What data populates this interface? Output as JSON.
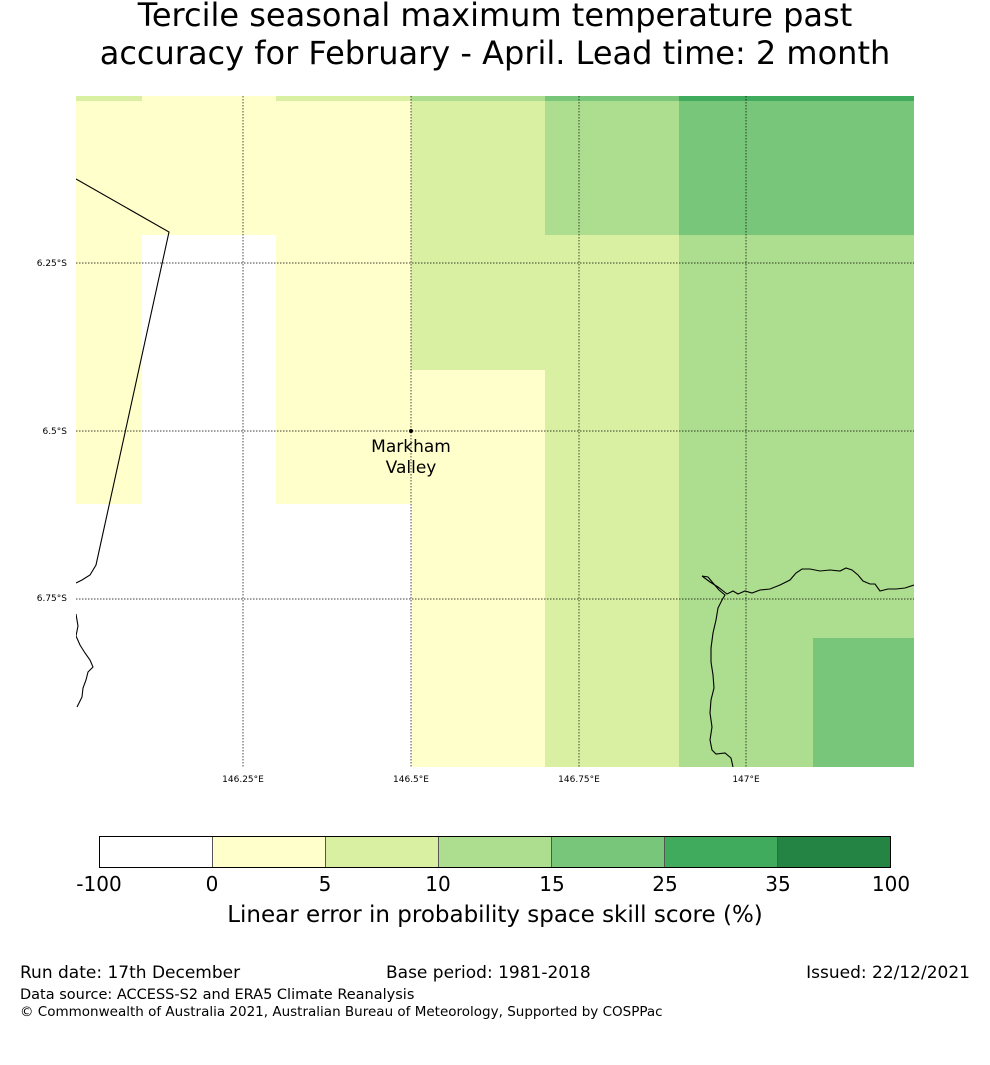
{
  "title": {
    "line1": "Tercile seasonal maximum temperature past",
    "line2": "accuracy for February - April. Lead time: 2 month"
  },
  "map": {
    "lat_labels": [
      "6.25°S",
      "6.5°S",
      "6.75°S"
    ],
    "lon_labels": [
      "146.25°E",
      "146.5°E",
      "146.75°E",
      "147°E"
    ],
    "place": {
      "name_line1": "Markham",
      "name_line2": "Valley",
      "lon": 146.5,
      "lat": -6.5
    }
  },
  "colorbar": {
    "ticks": [
      "-100",
      "0",
      "5",
      "10",
      "15",
      "25",
      "35",
      "100"
    ],
    "colors": [
      "#ffffff",
      "#ffffcc",
      "#d9f0a3",
      "#addd8e",
      "#78c679",
      "#41ab5d",
      "#238443"
    ],
    "label": "Linear error in probability space skill score (%)"
  },
  "footer": {
    "run_date": "Run date: 17th December",
    "base_period": "Base period: 1981-2018",
    "issued": "Issued: 22/12/2021",
    "data_source": "Data source: ACCESS-S2 and ERA5 Climate Reanalysis",
    "copyright": "© Commonwealth of Australia 2021, Australian Bureau of Meteorology, Supported by COSPPac"
  }
}
